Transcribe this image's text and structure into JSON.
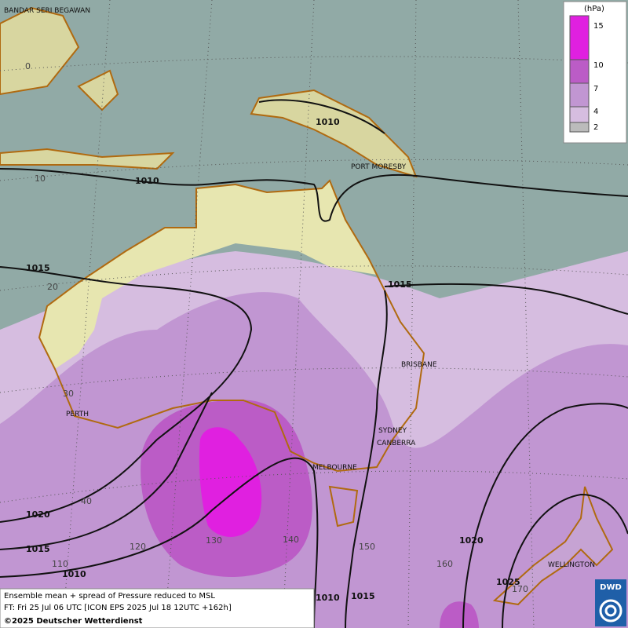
{
  "map": {
    "cities": [
      "BANDAR SERI BEGAWAN",
      "PORT MORESBY",
      "BRISBANE",
      "PERTH",
      "SYDNEY",
      "CANBERRA",
      "MELBOURNE",
      "WELLINGTON"
    ],
    "isobar_labels": [
      "1010",
      "1010",
      "1015",
      "1015",
      "1020",
      "1015",
      "1010",
      "1010",
      "1015",
      "1020",
      "1025"
    ],
    "grid_labels": [
      "0",
      "10",
      "20",
      "30",
      "40",
      "110",
      "120",
      "130",
      "140",
      "150",
      "160",
      "170"
    ],
    "legend": {
      "unit": "(hPa)",
      "levels": [
        "15",
        "10",
        "7",
        "4",
        "2"
      ]
    },
    "footer": [
      "Ensemble mean + spread of Pressure reduced to MSL",
      "FT: Fri 25 Jul 06 UTC [ICON EPS 2025 Jul 18 12UTC +162h]",
      "©2025 Deutscher Wetterdienst"
    ],
    "logo": "DWD"
  }
}
